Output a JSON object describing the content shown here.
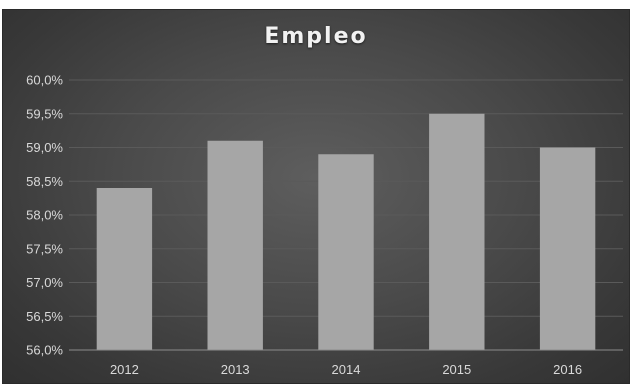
{
  "chart_data": {
    "type": "bar",
    "title": "Empleo",
    "categories": [
      "2012",
      "2013",
      "2014",
      "2015",
      "2016"
    ],
    "values": [
      58.4,
      59.1,
      58.9,
      59.5,
      59.0
    ],
    "ylim": [
      56.0,
      60.0
    ],
    "yticks": [
      56.0,
      56.5,
      57.0,
      57.5,
      58.0,
      58.5,
      59.0,
      59.5,
      60.0
    ],
    "ytick_labels": [
      "56,0%",
      "56,5%",
      "57,0%",
      "57,5%",
      "58,0%",
      "58,5%",
      "59,0%",
      "59,5%",
      "60,0%"
    ],
    "xlabel": "",
    "ylabel": "",
    "grid": true,
    "legend": "none",
    "colors": {
      "bar": "#a6a6a6",
      "grid": "#5a5a5a",
      "axis": "#8c8c8c"
    }
  }
}
